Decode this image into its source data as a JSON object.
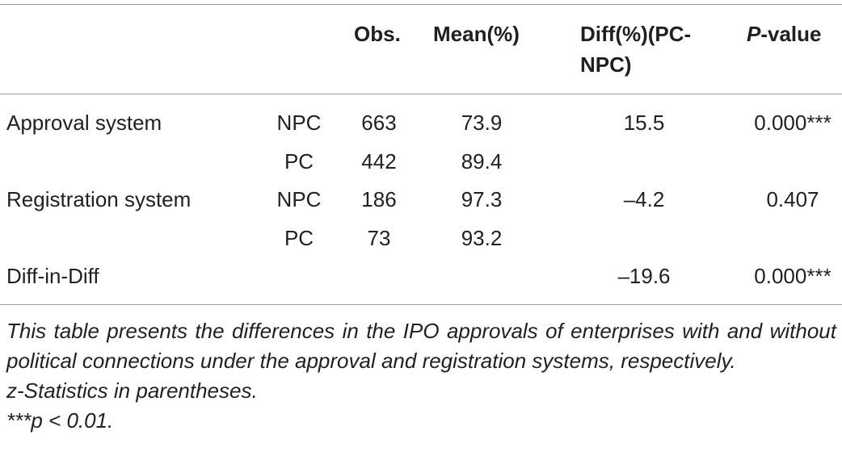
{
  "table": {
    "header": [
      "Obs.",
      "Mean(%)",
      "Diff(%)(PC-NPC)",
      "P-value"
    ],
    "rows": [
      {
        "group": "Approval system",
        "type": "NPC",
        "obs": "663",
        "mean": "73.9",
        "diff": "15.5",
        "p": "0.000***"
      },
      {
        "type": "PC",
        "obs": "442",
        "mean": "89.4"
      },
      {
        "group": "Registration system",
        "type": "NPC",
        "obs": "186",
        "mean": "97.3",
        "diff": "–4.2",
        "p": "0.407"
      },
      {
        "type": "PC",
        "obs": "73",
        "mean": "93.2"
      },
      {
        "group": "Diff-in-Diff",
        "diff": "–19.6",
        "p": "0.000***"
      }
    ],
    "notes": [
      "This table presents the differences in the IPO approvals of enterprises with and without political connections under the approval and registration systems, respectively.",
      "z-Statistics in parentheses.",
      "***p < 0.01."
    ]
  }
}
